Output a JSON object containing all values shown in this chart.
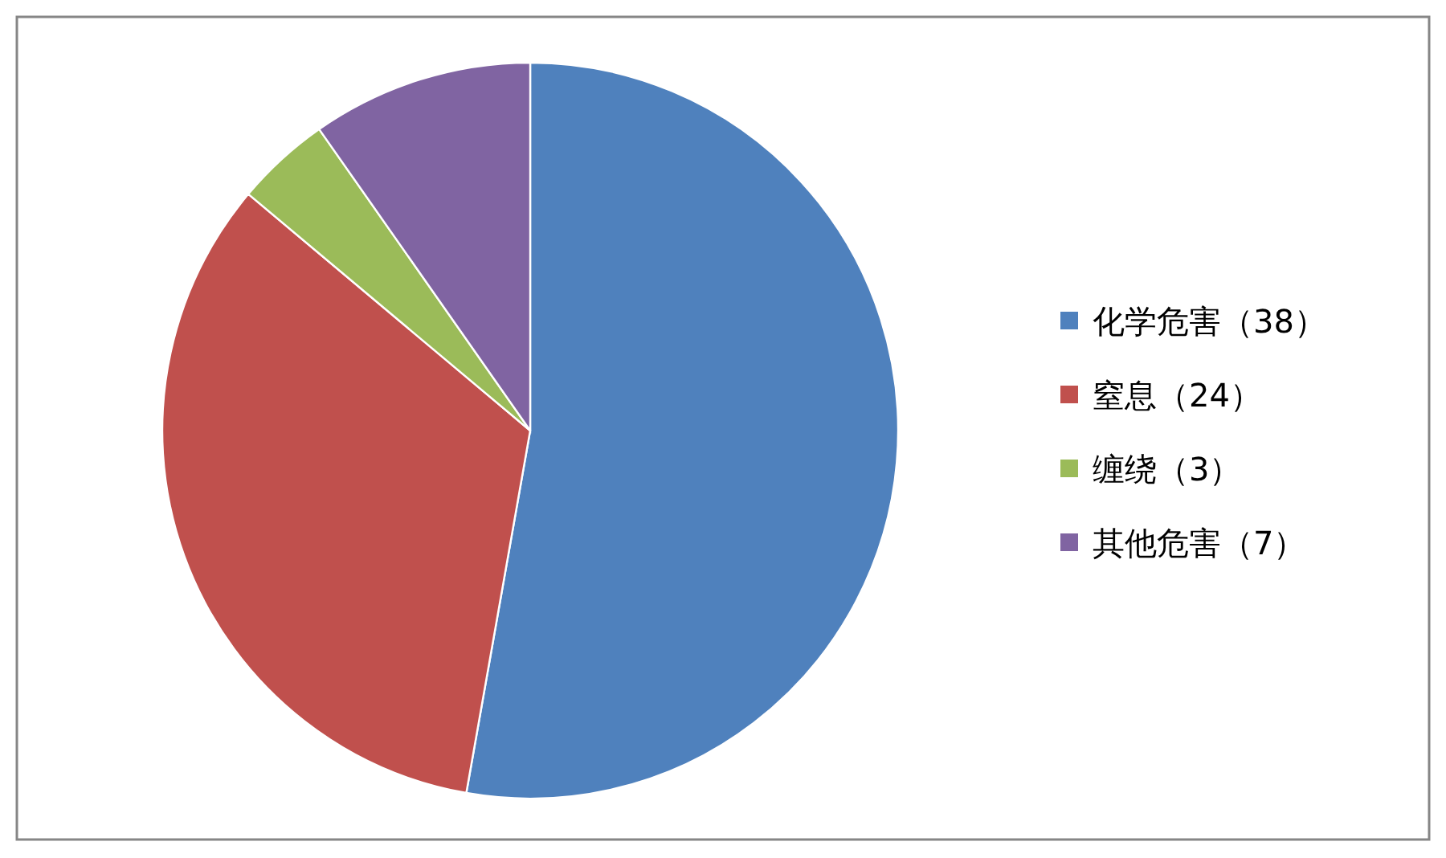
{
  "chart_data": {
    "type": "pie",
    "categories": [
      "化学危害（38）",
      "窒息（24）",
      "缠绕（3）",
      "其他危害（7）"
    ],
    "values": [
      38,
      24,
      3,
      7
    ],
    "colors": [
      "#4f81bd",
      "#c0504d",
      "#9bbb59",
      "#8064a2"
    ],
    "legend": "right"
  }
}
